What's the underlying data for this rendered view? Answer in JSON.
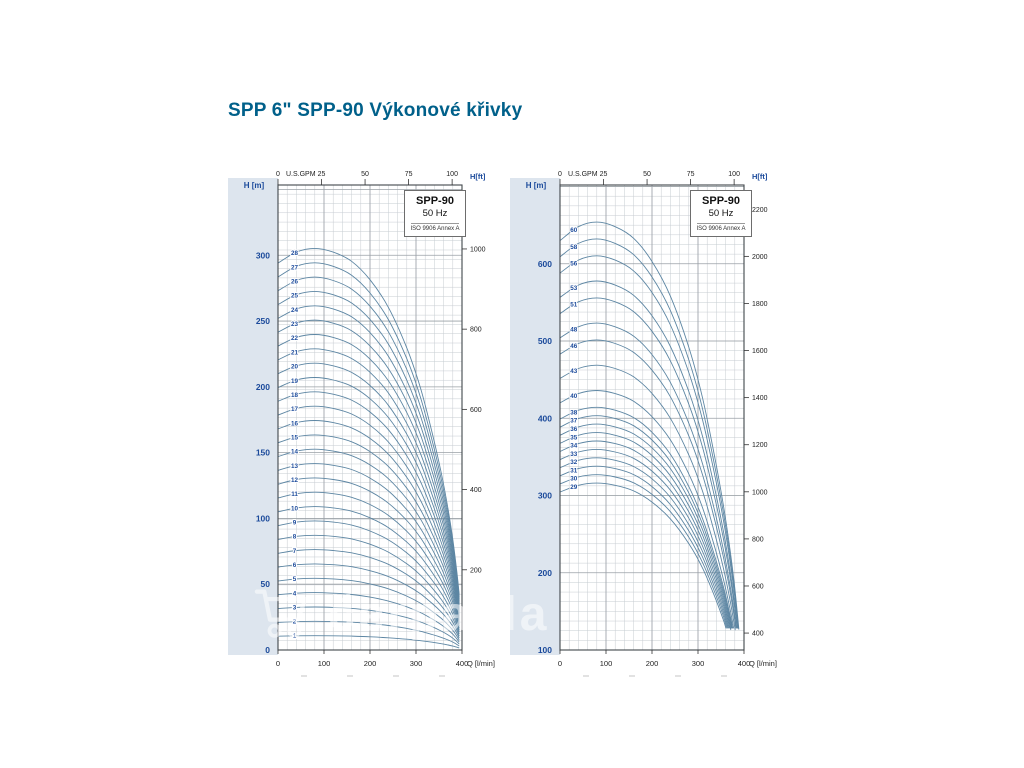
{
  "page": {
    "title": "SPP 6\" SPP-90 Výkonové křivky"
  },
  "watermark": {
    "text": "čerpadla",
    "icon": "shopping-cart-icon"
  },
  "chart_data": [
    {
      "type": "line",
      "title": "SPP-90",
      "subtitle": "50 Hz",
      "note": "ISO 9906 Annex A",
      "x_axis": {
        "label": "Q [l/min]",
        "ticks": [
          0,
          100,
          200,
          300,
          400
        ],
        "range": [
          0,
          400
        ]
      },
      "x_axis_top": {
        "label": "U.S.GPM",
        "ticks": [
          0,
          25,
          50,
          75,
          100
        ]
      },
      "y_axis": {
        "label": "H [m]",
        "ticks": [
          0,
          50,
          100,
          150,
          200,
          250,
          300
        ],
        "range": [
          0,
          353
        ]
      },
      "y_axis_right": {
        "label": "H[ft]",
        "ticks": [
          200,
          400,
          600,
          800,
          1000
        ]
      },
      "q_samples": [
        0,
        40,
        80,
        120,
        160,
        200,
        240,
        280,
        310,
        335,
        355,
        370,
        380,
        388,
        394
      ],
      "unit_head_m": [
        10.5,
        10.8,
        10.9,
        10.8,
        10.55,
        10.05,
        9.3,
        8.2,
        7.1,
        5.9,
        4.8,
        3.8,
        3.0,
        2.2,
        1.5
      ],
      "curves": [
        1,
        2,
        3,
        4,
        5,
        6,
        7,
        8,
        9,
        10,
        11,
        12,
        13,
        14,
        15,
        16,
        17,
        18,
        19,
        20,
        21,
        22,
        23,
        24,
        25,
        26,
        27,
        28
      ]
    },
    {
      "type": "line",
      "title": "SPP-90",
      "subtitle": "50 Hz",
      "note": "ISO 9906 Annex A",
      "x_axis": {
        "label": "Q [l/min]",
        "ticks": [
          0,
          100,
          200,
          300,
          400
        ],
        "range": [
          0,
          400
        ]
      },
      "x_axis_top": {
        "label": "U.S.GPM",
        "ticks": [
          0,
          25,
          50,
          75,
          100
        ]
      },
      "y_axis": {
        "label": "H [m]",
        "ticks": [
          100,
          200,
          300,
          400,
          500,
          600
        ],
        "range": [
          100,
          702
        ]
      },
      "y_axis_right": {
        "label": "H[ft]",
        "ticks": [
          400,
          600,
          800,
          1000,
          1200,
          1400,
          1600,
          1800,
          2000,
          2200
        ]
      },
      "q_samples": [
        0,
        40,
        80,
        120,
        160,
        200,
        240,
        280,
        310,
        335,
        355,
        370,
        380,
        388,
        394
      ],
      "unit_head_m": [
        10.5,
        10.8,
        10.9,
        10.8,
        10.55,
        10.05,
        9.3,
        8.2,
        7.1,
        5.9,
        4.8,
        3.8,
        3.0,
        2.2,
        1.5
      ],
      "curves": [
        29,
        30,
        31,
        32,
        33,
        34,
        35,
        36,
        37,
        38,
        40,
        43,
        46,
        48,
        51,
        53,
        56,
        58,
        60
      ]
    }
  ]
}
